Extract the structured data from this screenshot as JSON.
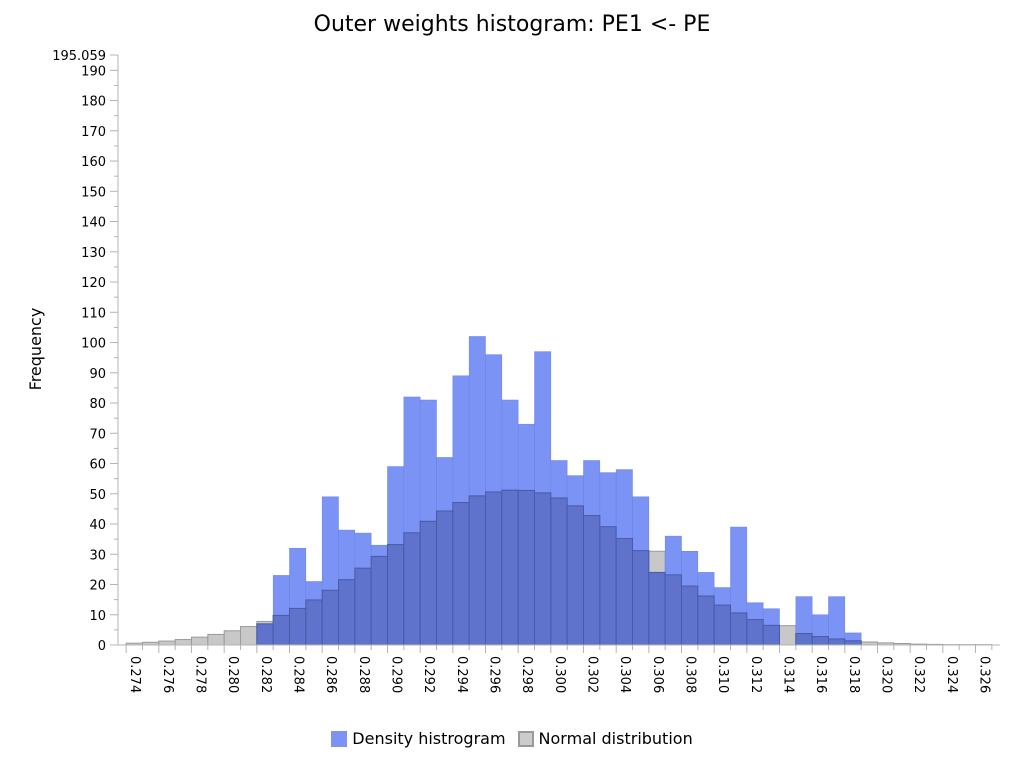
{
  "chart_data": {
    "type": "bar",
    "title": "Outer weights histogram: PE1 <- PE",
    "xlabel": "",
    "ylabel": "Frequency",
    "xlim": [
      0.2735,
      0.3275
    ],
    "ylim": [
      0,
      195.059
    ],
    "ymax_label": "195.059",
    "y_ticks": [
      0,
      10,
      20,
      30,
      40,
      50,
      60,
      70,
      80,
      90,
      100,
      110,
      120,
      130,
      140,
      150,
      160,
      170,
      180,
      190
    ],
    "x_ticks": [
      "0.274",
      "0.276",
      "0.278",
      "0.280",
      "0.282",
      "0.284",
      "0.286",
      "0.288",
      "0.290",
      "0.292",
      "0.294",
      "0.296",
      "0.298",
      "0.300",
      "0.302",
      "0.304",
      "0.306",
      "0.308",
      "0.310",
      "0.312",
      "0.314",
      "0.316",
      "0.318",
      "0.320",
      "0.322",
      "0.324",
      "0.326"
    ],
    "bin_width": 0.001,
    "grid": false,
    "legend_position": "bottom-center",
    "colors": {
      "histogram": "#7b93f5",
      "histogram_stroke": "#6a82e6",
      "normal_fill": "#c8c8c8",
      "normal_stroke": "#9a9a9a",
      "overlap_fill": "#5f72cc",
      "overlap_stroke": "#4a5aa8"
    },
    "series": [
      {
        "name": "Density histrogram",
        "bins": [
          {
            "x": 0.2825,
            "y": 7
          },
          {
            "x": 0.2835,
            "y": 23
          },
          {
            "x": 0.2845,
            "y": 32
          },
          {
            "x": 0.2855,
            "y": 21
          },
          {
            "x": 0.2865,
            "y": 49
          },
          {
            "x": 0.2875,
            "y": 38
          },
          {
            "x": 0.2885,
            "y": 37
          },
          {
            "x": 0.2895,
            "y": 33
          },
          {
            "x": 0.2905,
            "y": 59
          },
          {
            "x": 0.2915,
            "y": 82
          },
          {
            "x": 0.2925,
            "y": 81
          },
          {
            "x": 0.2935,
            "y": 62
          },
          {
            "x": 0.2945,
            "y": 89
          },
          {
            "x": 0.2955,
            "y": 102
          },
          {
            "x": 0.2965,
            "y": 96
          },
          {
            "x": 0.2975,
            "y": 81
          },
          {
            "x": 0.2985,
            "y": 73
          },
          {
            "x": 0.2995,
            "y": 97
          },
          {
            "x": 0.3005,
            "y": 61
          },
          {
            "x": 0.3015,
            "y": 56
          },
          {
            "x": 0.3025,
            "y": 61
          },
          {
            "x": 0.3035,
            "y": 57
          },
          {
            "x": 0.3045,
            "y": 58
          },
          {
            "x": 0.3055,
            "y": 49
          },
          {
            "x": 0.3065,
            "y": 24
          },
          {
            "x": 0.3075,
            "y": 36
          },
          {
            "x": 0.3085,
            "y": 31
          },
          {
            "x": 0.3095,
            "y": 24
          },
          {
            "x": 0.3105,
            "y": 19
          },
          {
            "x": 0.3115,
            "y": 39
          },
          {
            "x": 0.3125,
            "y": 14
          },
          {
            "x": 0.3135,
            "y": 12
          },
          {
            "x": 0.3145,
            "y": 0
          },
          {
            "x": 0.3155,
            "y": 16
          },
          {
            "x": 0.3165,
            "y": 10
          },
          {
            "x": 0.3175,
            "y": 16
          },
          {
            "x": 0.3185,
            "y": 4
          }
        ]
      },
      {
        "name": "Normal distribution",
        "bins": [
          {
            "x": 0.2745,
            "y": 0.6
          },
          {
            "x": 0.2755,
            "y": 0.9
          },
          {
            "x": 0.2765,
            "y": 1.3
          },
          {
            "x": 0.2775,
            "y": 1.8
          },
          {
            "x": 0.2785,
            "y": 2.6
          },
          {
            "x": 0.2795,
            "y": 3.5
          },
          {
            "x": 0.2805,
            "y": 4.7
          },
          {
            "x": 0.2815,
            "y": 6.1
          },
          {
            "x": 0.2825,
            "y": 7.8
          },
          {
            "x": 0.2835,
            "y": 9.8
          },
          {
            "x": 0.2845,
            "y": 12.1
          },
          {
            "x": 0.2855,
            "y": 14.9
          },
          {
            "x": 0.2865,
            "y": 18.1
          },
          {
            "x": 0.2875,
            "y": 21.6
          },
          {
            "x": 0.2885,
            "y": 25.4
          },
          {
            "x": 0.2895,
            "y": 29.3
          },
          {
            "x": 0.2905,
            "y": 33.2
          },
          {
            "x": 0.2915,
            "y": 37.1
          },
          {
            "x": 0.2925,
            "y": 40.9
          },
          {
            "x": 0.2935,
            "y": 44.3
          },
          {
            "x": 0.2945,
            "y": 47.1
          },
          {
            "x": 0.2955,
            "y": 49.3
          },
          {
            "x": 0.2965,
            "y": 50.6
          },
          {
            "x": 0.2975,
            "y": 51.2
          },
          {
            "x": 0.2985,
            "y": 51.1
          },
          {
            "x": 0.2995,
            "y": 50.3
          },
          {
            "x": 0.3005,
            "y": 48.6
          },
          {
            "x": 0.3015,
            "y": 46.0
          },
          {
            "x": 0.3025,
            "y": 42.8
          },
          {
            "x": 0.3035,
            "y": 39.1
          },
          {
            "x": 0.3045,
            "y": 35.2
          },
          {
            "x": 0.3055,
            "y": 31.2
          },
          {
            "x": 0.3065,
            "y": 31.0
          },
          {
            "x": 0.3075,
            "y": 23.2
          },
          {
            "x": 0.3085,
            "y": 19.5
          },
          {
            "x": 0.3095,
            "y": 16.2
          },
          {
            "x": 0.3105,
            "y": 13.2
          },
          {
            "x": 0.3115,
            "y": 10.6
          },
          {
            "x": 0.3125,
            "y": 8.4
          },
          {
            "x": 0.3135,
            "y": 6.5
          },
          {
            "x": 0.3145,
            "y": 6.4
          },
          {
            "x": 0.3155,
            "y": 3.8
          },
          {
            "x": 0.3165,
            "y": 2.8
          },
          {
            "x": 0.3175,
            "y": 2.0
          },
          {
            "x": 0.3185,
            "y": 1.4
          },
          {
            "x": 0.3195,
            "y": 1.0
          },
          {
            "x": 0.3205,
            "y": 0.7
          },
          {
            "x": 0.3215,
            "y": 0.5
          },
          {
            "x": 0.3225,
            "y": 0.3
          },
          {
            "x": 0.3235,
            "y": 0.2
          },
          {
            "x": 0.3245,
            "y": 0.1
          },
          {
            "x": 0.3255,
            "y": 0.1
          },
          {
            "x": 0.3265,
            "y": 0.1
          }
        ]
      }
    ]
  }
}
